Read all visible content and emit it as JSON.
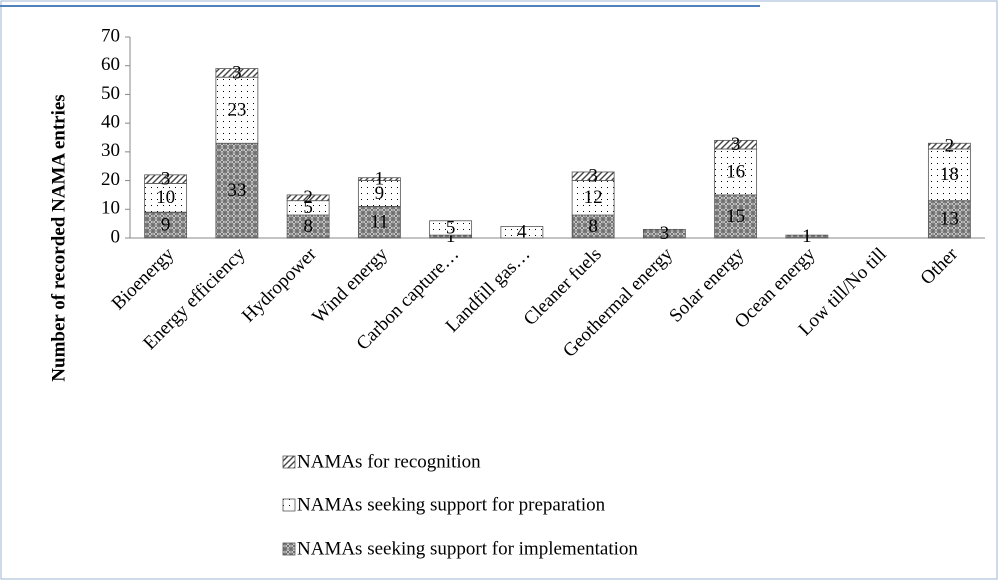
{
  "chart_data": {
    "type": "stacked-bar",
    "y_axis_label": "Number of recorded NAMA entries",
    "categories": [
      "Bioenergy",
      "Energy efficiency",
      "Hydropower",
      "Wind energy",
      "Carbon capture…",
      "Landfill gas…",
      "Cleaner fuels",
      "Geothermal energy",
      "Solar energy",
      "Ocean energy",
      "Low till/No till",
      "Other"
    ],
    "series": [
      {
        "name": "NAMAs seeking support for implementation",
        "color": "#707070",
        "values": [
          9,
          33,
          8,
          11,
          1,
          null,
          8,
          3,
          15,
          1,
          null,
          13
        ]
      },
      {
        "name": "NAMAs seeking support for preparation",
        "color": "#ffffff",
        "values": [
          10,
          23,
          5,
          9,
          5,
          4,
          12,
          null,
          16,
          null,
          null,
          18
        ]
      },
      {
        "name": "NAMAs for recognition",
        "color": "#a0a0a0",
        "values": [
          3,
          3,
          2,
          1,
          null,
          null,
          3,
          null,
          3,
          null,
          null,
          2
        ]
      }
    ],
    "ylim": [
      0,
      70
    ],
    "yticks": [
      0,
      10,
      20,
      30,
      40,
      50,
      60,
      70
    ],
    "grid": false
  }
}
